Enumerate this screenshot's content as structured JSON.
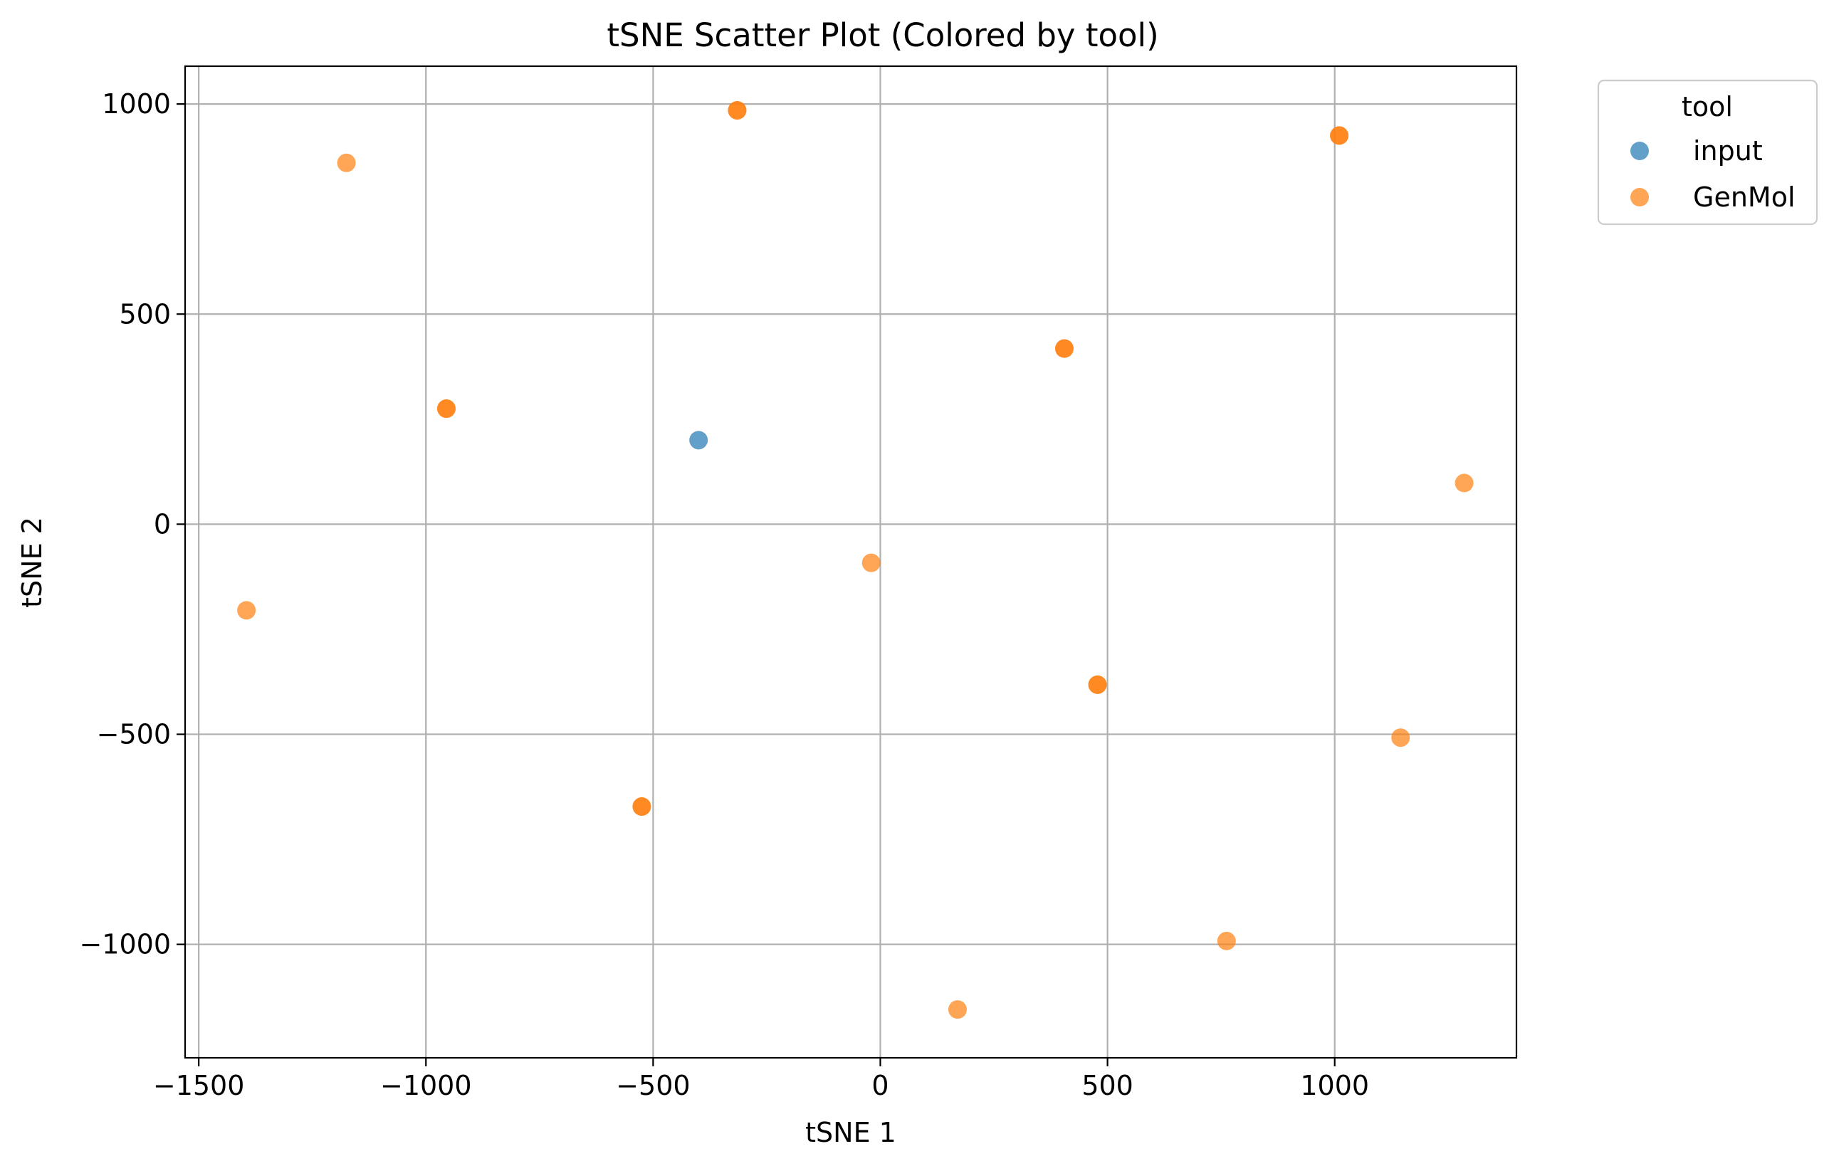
{
  "chart_data": {
    "type": "scatter",
    "title": "tSNE Scatter Plot (Colored by tool)",
    "xlabel": "tSNE 1",
    "ylabel": "tSNE 2",
    "xlim": [
      -1530,
      1400
    ],
    "ylim": [
      -1270,
      1090
    ],
    "xticks": [
      -1500,
      -1000,
      -500,
      0,
      500,
      1000
    ],
    "yticks": [
      -1000,
      -500,
      0,
      500,
      1000
    ],
    "grid": true,
    "legend": {
      "title": "tool",
      "placement": "outside-top-right"
    },
    "series": [
      {
        "name": "input",
        "color": "#1f77b4",
        "opacity": 0.7,
        "points": [
          {
            "x": -400,
            "y": 200
          }
        ]
      },
      {
        "name": "GenMol",
        "color": "#ff7f0e",
        "opacity": 0.7,
        "points": [
          {
            "x": -1175,
            "y": 860
          },
          {
            "x": -315,
            "y": 985
          },
          {
            "x": -315,
            "y": 985
          },
          {
            "x": 1010,
            "y": 925
          },
          {
            "x": 1010,
            "y": 925
          },
          {
            "x": 405,
            "y": 418
          },
          {
            "x": 405,
            "y": 418
          },
          {
            "x": -955,
            "y": 275
          },
          {
            "x": -955,
            "y": 275
          },
          {
            "x": 1285,
            "y": 98
          },
          {
            "x": -20,
            "y": -92
          },
          {
            "x": -1395,
            "y": -205
          },
          {
            "x": 478,
            "y": -382
          },
          {
            "x": 478,
            "y": -382
          },
          {
            "x": 1145,
            "y": -508
          },
          {
            "x": -525,
            "y": -672
          },
          {
            "x": -525,
            "y": -672
          },
          {
            "x": 762,
            "y": -992
          },
          {
            "x": 170,
            "y": -1155
          }
        ]
      }
    ]
  }
}
